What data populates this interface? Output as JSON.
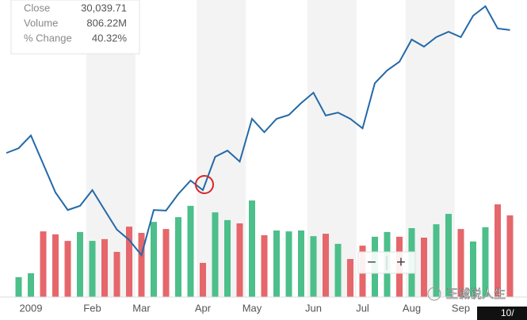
{
  "tooltip": {
    "rows": [
      [
        "Close",
        "30,039.71"
      ],
      [
        "Volume",
        "806.22M"
      ],
      [
        "% Change",
        "40.32%"
      ]
    ]
  },
  "zoom_controls": [
    "−",
    "+"
  ],
  "watermark": "王诚说人生",
  "crosshair_label": "10/",
  "chart_data": {
    "type": "line",
    "categories": [
      null,
      null,
      "2009",
      null,
      null,
      null,
      null,
      "Feb",
      null,
      null,
      null,
      "Mar",
      null,
      null,
      null,
      null,
      "Apr",
      null,
      null,
      null,
      "May",
      null,
      null,
      null,
      null,
      "Jun",
      null,
      null,
      null,
      "Jul",
      null,
      null,
      null,
      "Aug",
      null,
      null,
      null,
      "Sep",
      null,
      null,
      null,
      null
    ],
    "ylim": [
      0,
      100
    ],
    "y2lim": [
      0,
      100
    ],
    "price": {
      "color": "#2369a8",
      "values": [
        48.5,
        50.1,
        54.4,
        44.8,
        35.2,
        29.3,
        30.7,
        36,
        29.3,
        22.7,
        19.2,
        14.1,
        29.3,
        29.1,
        34.7,
        39.2,
        36,
        47.2,
        49.3,
        45.6,
        60,
        55.5,
        60,
        61.3,
        65.3,
        68.8,
        61.1,
        62.1,
        60,
        56.8,
        72,
        76.3,
        79.2,
        86.7,
        84.3,
        87.5,
        89.3,
        87.5,
        94.7,
        97.9,
        90.4,
        89.9
      ]
    },
    "volume": {
      "axis": "y2",
      "colors": [
        null,
        "#4cbf8a",
        "#4cbf8a",
        "#e5676b",
        "#e5676b",
        "#e5676b",
        "#4cbf8a",
        "#4cbf8a",
        "#e5676b",
        "#e5676b",
        "#e5676b",
        "#e5676b",
        "#4cbf8a",
        "#e5676b",
        "#4cbf8a",
        "#4cbf8a",
        "#e5676b",
        "#4cbf8a",
        "#4cbf8a",
        "#e5676b",
        "#4cbf8a",
        "#e5676b",
        "#4cbf8a",
        "#4cbf8a",
        "#4cbf8a",
        "#4cbf8a",
        "#e5676b",
        "#4cbf8a",
        "#e5676b",
        "#e5676b",
        "#4cbf8a",
        "#4cbf8a",
        "#e5676b",
        "#4cbf8a",
        "#e5676b",
        "#4cbf8a",
        "#4cbf8a",
        "#e5676b",
        "#4cbf8a",
        "#4cbf8a",
        "#e5676b",
        "#e5676b"
      ],
      "values": [
        null,
        6.7,
        8,
        22.1,
        21.1,
        18.9,
        21.9,
        18.9,
        19.5,
        15.2,
        23.7,
        21.6,
        25.3,
        22.9,
        26.9,
        30.7,
        11.5,
        28.5,
        25.9,
        24.8,
        32.5,
        20.8,
        22.4,
        22.1,
        22.4,
        20.5,
        21.3,
        17.9,
        12.8,
        17.3,
        20.3,
        21.9,
        20.3,
        23.2,
        20,
        24.5,
        28,
        22.9,
        18.7,
        23.5,
        31.2,
        27.5
      ]
    }
  }
}
